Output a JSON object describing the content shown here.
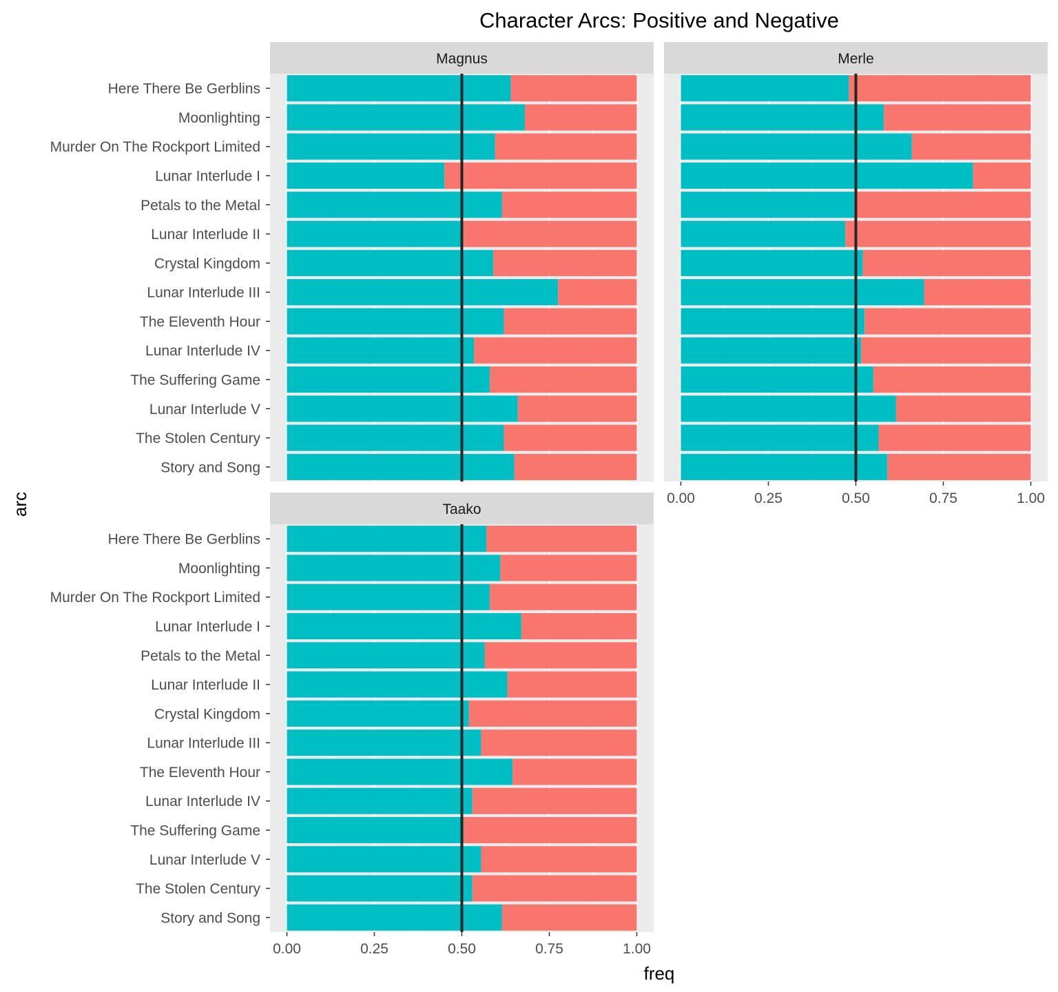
{
  "chart_data": {
    "type": "bar",
    "title": "Character Arcs: Positive and Negative",
    "xlabel": "freq",
    "ylabel": "arc",
    "xlim": [
      0,
      1
    ],
    "x_ticks": [
      "0.00",
      "0.25",
      "0.50",
      "0.75",
      "1.00"
    ],
    "reference_line": 0.5,
    "stacked": true,
    "colors": {
      "positive": "#00BFC4",
      "negative": "#F8766D",
      "reference": "#262626",
      "panel": "#EBEBEB",
      "strip": "#D9D9D9"
    },
    "categories": [
      "Here There Be Gerblins",
      "Moonlighting",
      "Murder On The Rockport Limited",
      "Lunar Interlude I",
      "Petals to the Metal",
      "Lunar Interlude II",
      "Crystal Kingdom",
      "Lunar Interlude III",
      "The Eleventh Hour",
      "Lunar Interlude IV",
      "The Suffering Game",
      "Lunar Interlude V",
      "The Stolen Century",
      "Story and Song"
    ],
    "facets": [
      {
        "name": "Magnus",
        "positive": [
          0.64,
          0.68,
          0.595,
          0.45,
          0.615,
          0.5,
          0.59,
          0.775,
          0.62,
          0.535,
          0.58,
          0.66,
          0.62,
          0.65
        ]
      },
      {
        "name": "Merle",
        "positive": [
          0.48,
          0.58,
          0.66,
          0.835,
          0.495,
          0.47,
          0.52,
          0.695,
          0.525,
          0.515,
          0.55,
          0.615,
          0.565,
          0.59
        ]
      },
      {
        "name": "Taako",
        "positive": [
          0.57,
          0.61,
          0.58,
          0.67,
          0.565,
          0.63,
          0.52,
          0.555,
          0.645,
          0.53,
          0.505,
          0.555,
          0.53,
          0.615
        ]
      }
    ]
  }
}
